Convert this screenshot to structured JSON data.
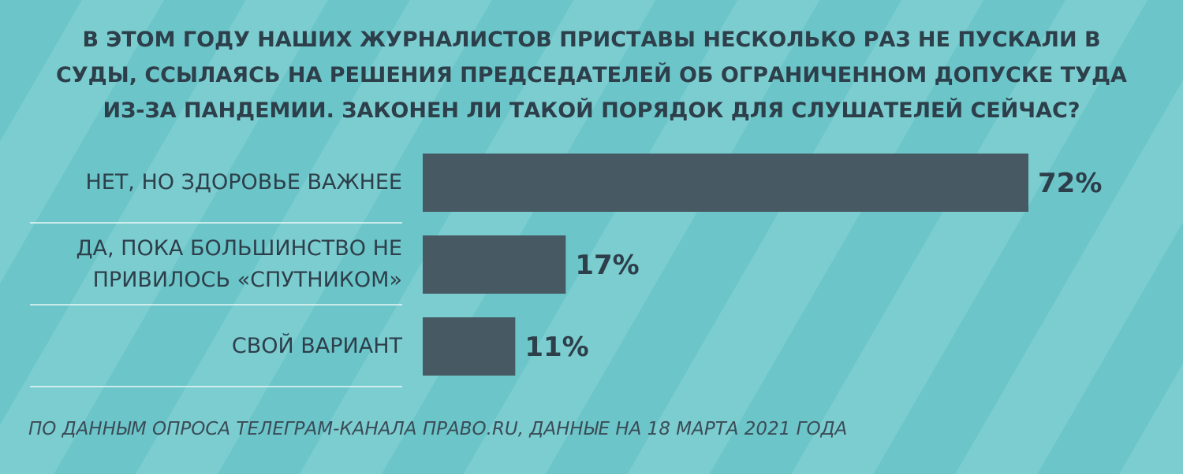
{
  "chart_data": {
    "type": "bar",
    "orientation": "horizontal",
    "title": "В ЭТОМ ГОДУ НАШИХ ЖУРНАЛИСТОВ ПРИСТАВЫ НЕСКОЛЬКО РАЗ НЕ ПУСКАЛИ В СУДЫ, ССЫЛАЯСЬ НА РЕШЕНИЯ ПРЕДСЕДАТЕЛЕЙ ОБ ОГРАНИЧЕННОМ ДОПУСКЕ ТУДА ИЗ-ЗА ПАНДЕМИИ. ЗАКОНЕН ЛИ ТАКОЙ ПОРЯДОК ДЛЯ СЛУШАТЕЛЕЙ СЕЙЧАС?",
    "categories": [
      "НЕТ, НО ЗДОРОВЬЕ ВАЖНЕЕ",
      "ДА, ПОКА БОЛЬШИНСТВО НЕ\nПРИВИЛОСЬ «СПУТНИКОМ»",
      "СВОЙ ВАРИАНТ"
    ],
    "values": [
      72,
      17,
      11
    ],
    "value_labels": [
      "72%",
      "17%",
      "11%"
    ],
    "color": "#475963",
    "source": "ПО ДАННЫМ ОПРОСА ТЕЛЕГРАМ-КАНАЛА ПРАВО.RU, ДАННЫЕ НА 18 МАРТА 2021 ГОДА"
  }
}
